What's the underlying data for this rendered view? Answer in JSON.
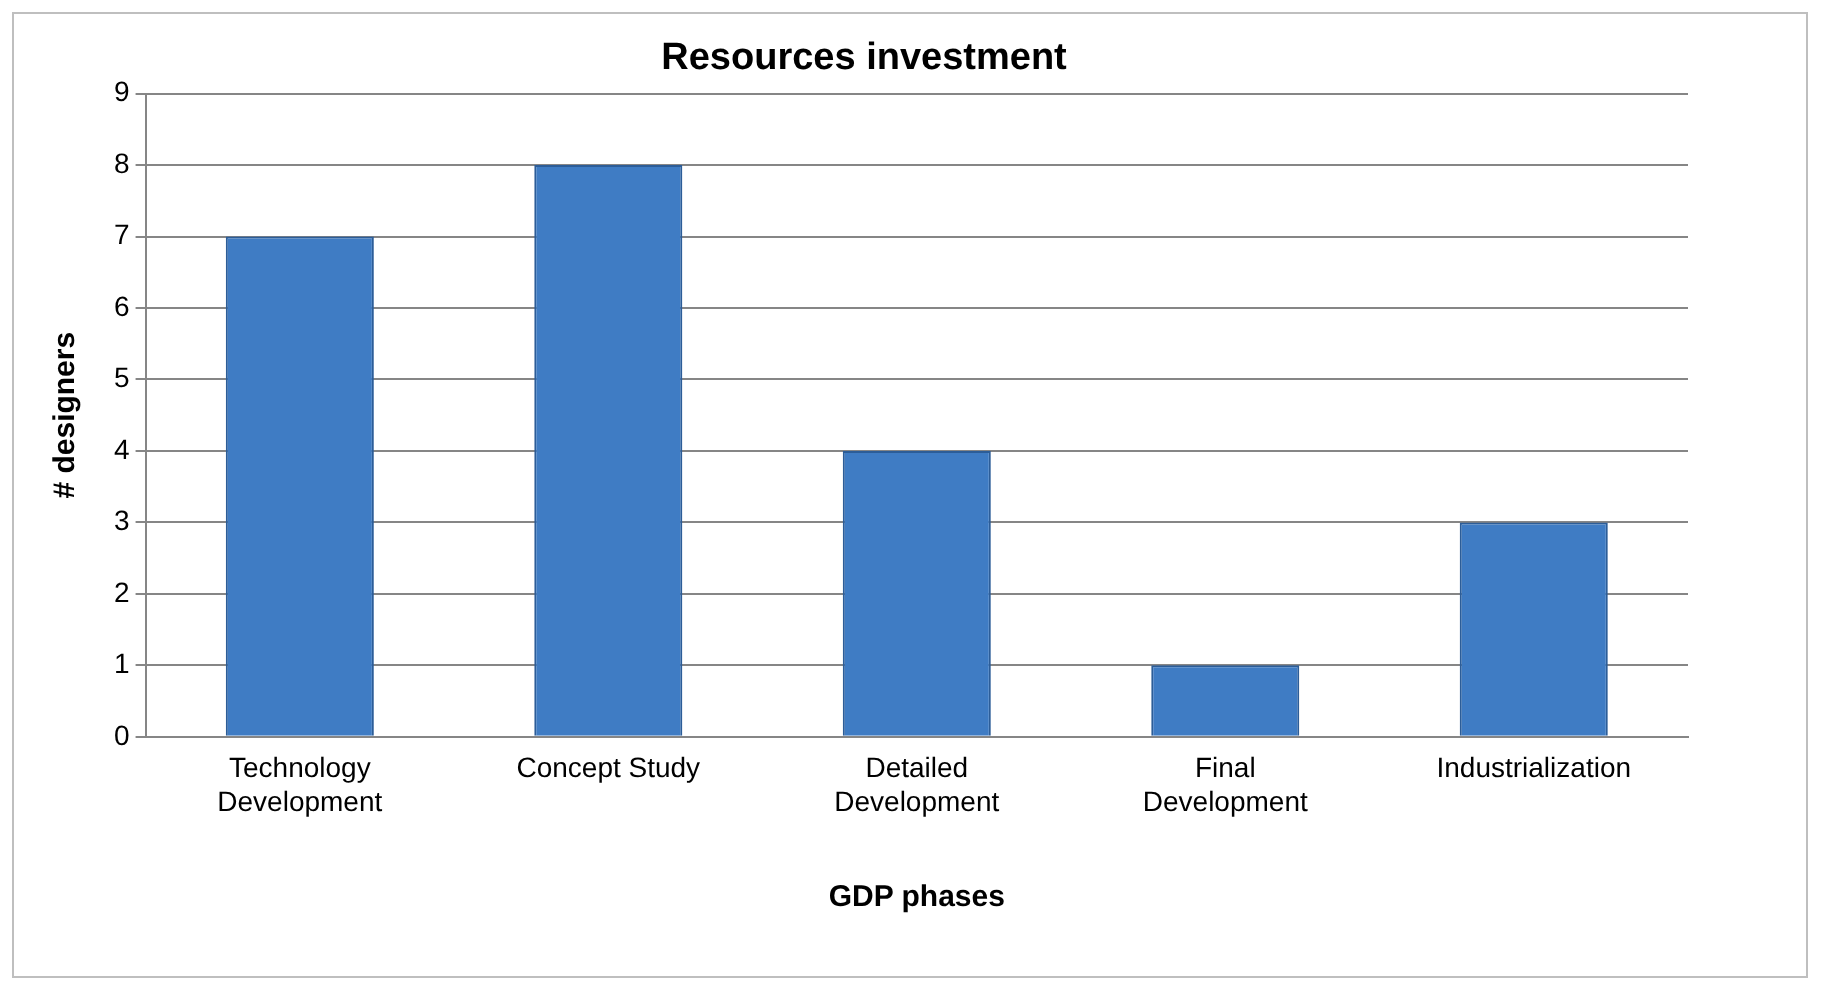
{
  "chart_data": {
    "type": "bar",
    "title": "Resources investment",
    "xlabel": "GDP phases",
    "ylabel": "# designers",
    "categories": [
      "Technology Development",
      "Concept Study",
      "Detailed Development",
      "Final Development",
      "Industrialization"
    ],
    "values": [
      7,
      8,
      4,
      1,
      3
    ],
    "color": "#3f7cc4",
    "ylim": [
      0,
      9
    ],
    "yticks": [
      0,
      1,
      2,
      3,
      4,
      5,
      6,
      7,
      8,
      9
    ],
    "grid": "y",
    "legend": false
  }
}
